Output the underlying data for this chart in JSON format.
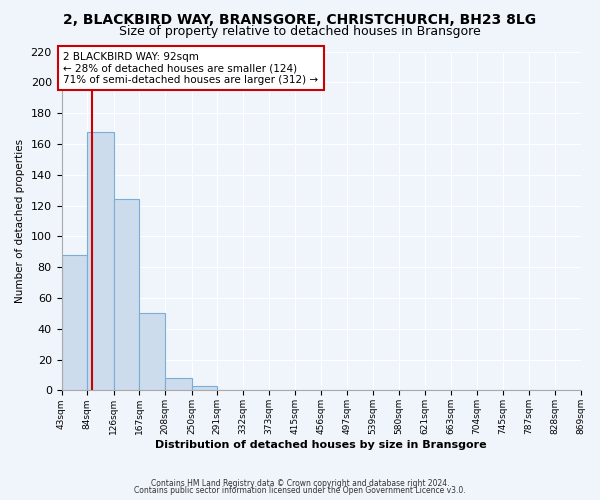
{
  "title": "2, BLACKBIRD WAY, BRANSGORE, CHRISTCHURCH, BH23 8LG",
  "subtitle": "Size of property relative to detached houses in Bransgore",
  "xlabel": "Distribution of detached houses by size in Bransgore",
  "ylabel": "Number of detached properties",
  "bar_values": [
    88,
    168,
    124,
    50,
    8,
    3,
    0,
    0,
    0,
    0,
    0,
    0,
    0,
    0,
    0,
    0,
    0,
    0,
    0,
    0
  ],
  "bin_label_values": [
    43,
    84,
    126,
    167,
    208,
    250,
    291,
    332,
    373,
    415,
    456,
    497,
    539,
    580,
    621,
    663,
    704,
    745,
    787,
    828,
    869
  ],
  "bin_labels": [
    "43sqm",
    "84sqm",
    "126sqm",
    "167sqm",
    "208sqm",
    "250sqm",
    "291sqm",
    "332sqm",
    "373sqm",
    "415sqm",
    "456sqm",
    "497sqm",
    "539sqm",
    "580sqm",
    "621sqm",
    "663sqm",
    "704sqm",
    "745sqm",
    "787sqm",
    "828sqm",
    "869sqm"
  ],
  "bar_color": "#ccdcec",
  "bar_edge_color": "#7aaed6",
  "property_line_x": 92,
  "property_line_color": "#cc0000",
  "ylim": [
    0,
    220
  ],
  "yticks": [
    0,
    20,
    40,
    60,
    80,
    100,
    120,
    140,
    160,
    180,
    200,
    220
  ],
  "annotation_title": "2 BLACKBIRD WAY: 92sqm",
  "annotation_line1": "← 28% of detached houses are smaller (124)",
  "annotation_line2": "71% of semi-detached houses are larger (312) →",
  "annotation_box_color": "#cc0000",
  "footnote1": "Contains HM Land Registry data © Crown copyright and database right 2024.",
  "footnote2": "Contains public sector information licensed under the Open Government Licence v3.0.",
  "background_color": "#f0f5fb",
  "grid_color": "#ffffff",
  "title_fontsize": 10,
  "subtitle_fontsize": 9
}
